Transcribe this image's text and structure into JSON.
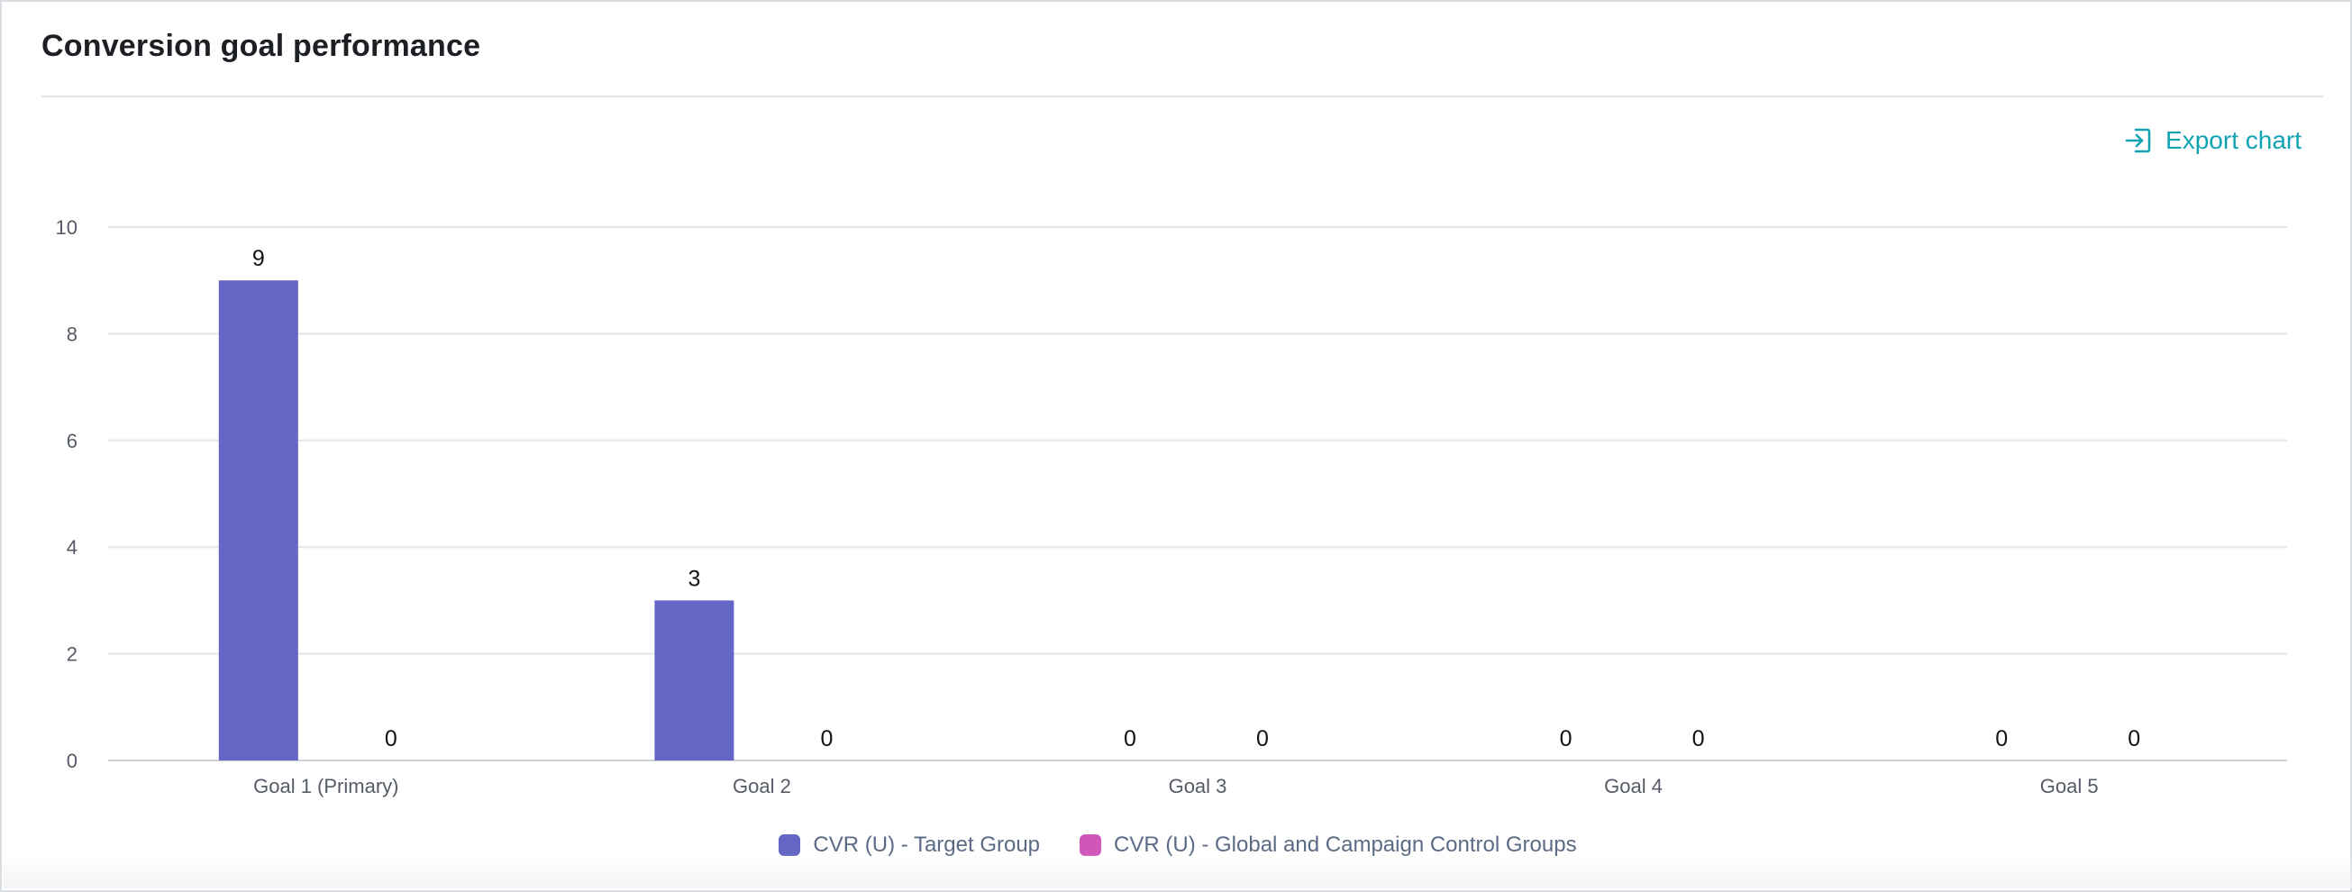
{
  "card": {
    "title": "Conversion goal performance"
  },
  "toolbar": {
    "export_label": "Export chart",
    "export_icon": "export-icon"
  },
  "colors": {
    "series_target": "#6366c5",
    "series_control": "#d056b9",
    "accent": "#12a3b3",
    "grid": "#e4e6ea",
    "axis_text": "#555b66"
  },
  "chart_data": {
    "type": "bar",
    "categories": [
      "Goal 1 (Primary)",
      "Goal 2",
      "Goal 3",
      "Goal 4",
      "Goal 5"
    ],
    "series": [
      {
        "name": "CVR (U) - Target Group",
        "values": [
          9,
          3,
          0,
          0,
          0
        ]
      },
      {
        "name": "CVR (U) - Global and Campaign Control Groups",
        "values": [
          0,
          0,
          0,
          0,
          0
        ]
      }
    ],
    "ylim": [
      0,
      10
    ],
    "yticks": [
      0,
      2,
      4,
      6,
      8,
      10
    ],
    "grid": true,
    "legend_position": "bottom-center",
    "data_labels": true
  }
}
